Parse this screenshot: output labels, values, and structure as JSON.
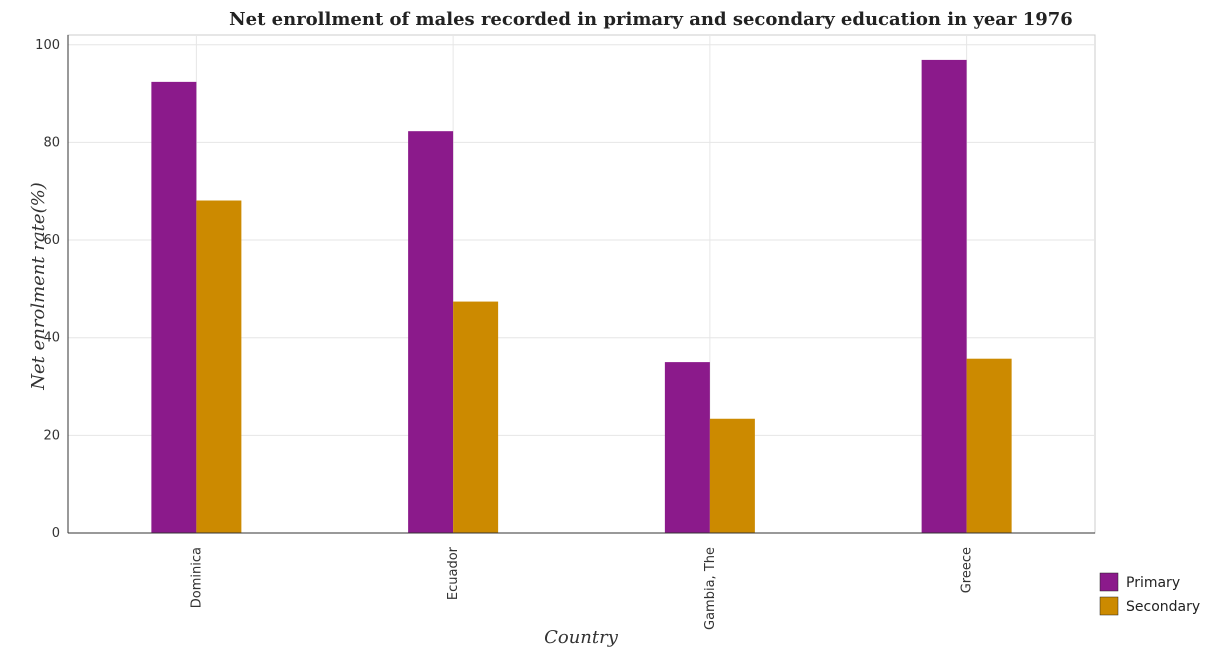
{
  "chart_data": {
    "type": "bar",
    "title": "Net enrollment of males recorded in primary and secondary education in year 1976",
    "xlabel": "Country",
    "ylabel": "Net enrolment rate(%)",
    "categories": [
      "Dominica",
      "Ecuador",
      "Gambia, The",
      "Greece"
    ],
    "series": [
      {
        "name": "Primary",
        "color": "#8b1a8b",
        "values": [
          92.4,
          82.3,
          35.0,
          96.9
        ]
      },
      {
        "name": "Secondary",
        "color": "#cc8a00",
        "values": [
          68.1,
          47.4,
          23.4,
          35.7
        ]
      }
    ],
    "ylim": [
      0,
      102
    ],
    "yticks": [
      0,
      20,
      40,
      60,
      80,
      100
    ],
    "grid": true,
    "legend_position": "bottom-right"
  }
}
